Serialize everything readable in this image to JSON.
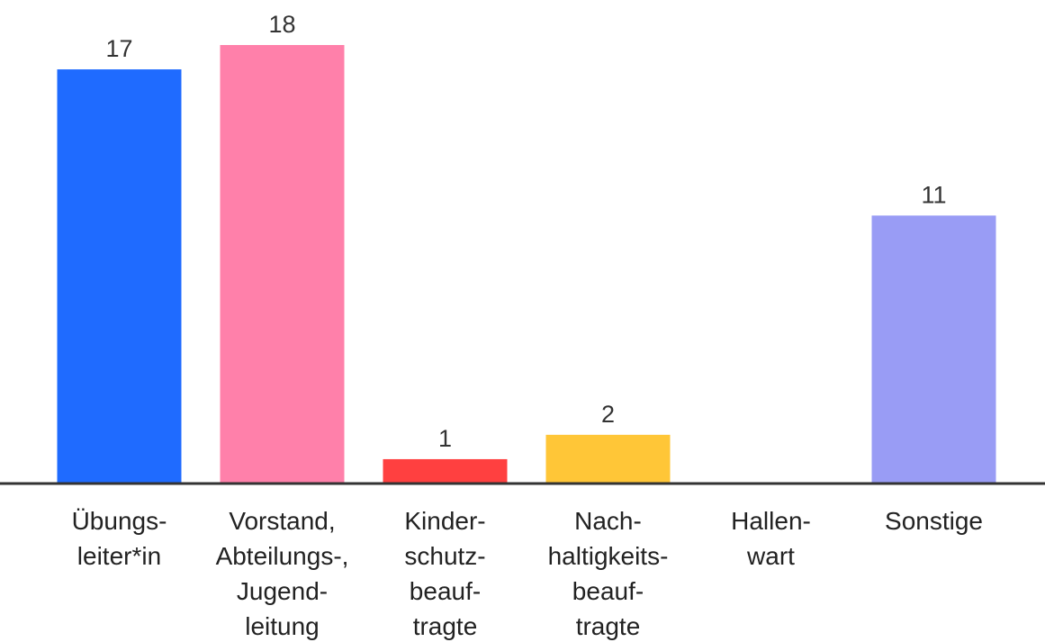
{
  "chart_data": {
    "type": "bar",
    "categories": [
      "Übungs-\nleiter*in",
      "Vorstand,\nAbteilungs-,\nJugend-\nleitung",
      "Kinder-\nschutz-\nbeauf-\ntragte",
      "Nach-\nhaltigkeits-\nbeauf-\ntragte",
      "Hallen-\nwart",
      "Sonstige"
    ],
    "values": [
      17,
      18,
      1,
      2,
      0,
      11
    ],
    "value_labels": [
      "17",
      "18",
      "1",
      "2",
      null,
      "11"
    ],
    "colors": [
      "#1f6bff",
      "#ff80aa",
      "#ff4040",
      "#ffc637",
      null,
      "#999cf5"
    ],
    "ylim": [
      0,
      18
    ]
  }
}
